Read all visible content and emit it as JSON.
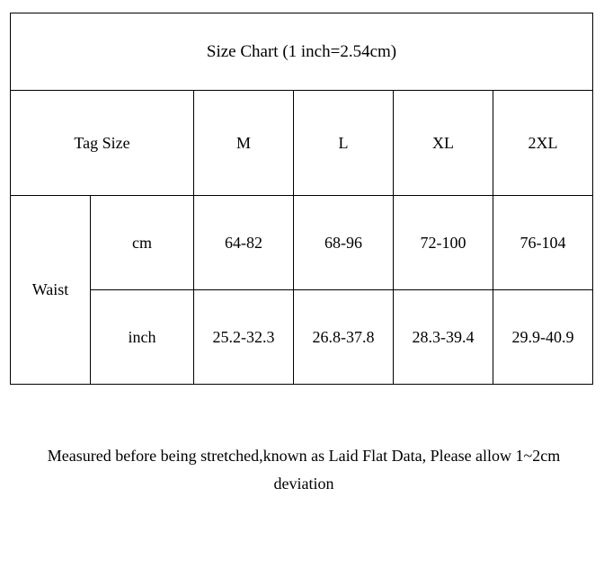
{
  "table": {
    "title": "Size Chart (1 inch=2.54cm)",
    "header": {
      "tag_size": "Tag Size",
      "sizes": [
        "M",
        "L",
        "XL",
        "2XL"
      ]
    },
    "measurement": {
      "label": "Waist",
      "units": [
        "cm",
        "inch"
      ],
      "rows": {
        "cm": [
          "64-82",
          "68-96",
          "72-100",
          "76-104"
        ],
        "inch": [
          "25.2-32.3",
          "26.8-37.8",
          "28.3-39.4",
          "29.9-40.9"
        ]
      }
    },
    "footer_note": "Measured before being stretched,known as Laid Flat Data, Please allow 1~2cm deviation",
    "styling": {
      "background_color": "#ffffff",
      "text_color": "#000000",
      "border_color": "#000000",
      "title_fontsize": 19,
      "cell_fontsize": 18,
      "footer_fontsize": 18,
      "font_family": "Times New Roman",
      "column_widths": {
        "tag_size": 204,
        "waist_label": 89,
        "unit": 115,
        "size_col": 111
      },
      "row_heights": {
        "title": 86,
        "header": 117,
        "data": 105
      }
    }
  }
}
